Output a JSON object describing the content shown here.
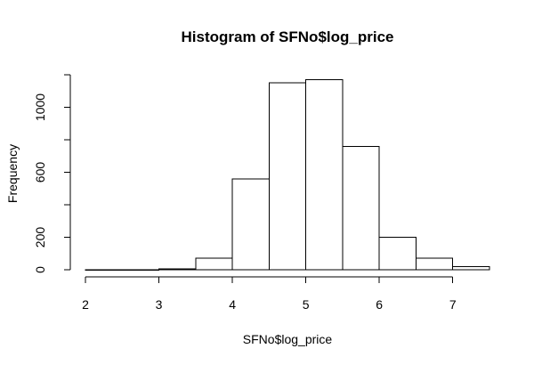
{
  "chart_data": {
    "type": "bar",
    "title": "Histogram of SFNo$log_price",
    "xlabel": "SFNo$log_price",
    "ylabel": "Frequency",
    "bin_edges": [
      2.0,
      2.5,
      3.0,
      3.5,
      4.0,
      4.5,
      5.0,
      5.5,
      6.0,
      6.5,
      7.0,
      7.5
    ],
    "values": [
      1,
      1,
      6,
      70,
      560,
      1150,
      1170,
      760,
      200,
      70,
      20
    ],
    "xlim": [
      2.0,
      7.5
    ],
    "ylim": [
      0,
      1200
    ],
    "x_ticks": [
      2,
      3,
      4,
      5,
      6,
      7
    ],
    "y_ticks": [
      0,
      200,
      600,
      1000
    ],
    "grid": false
  }
}
